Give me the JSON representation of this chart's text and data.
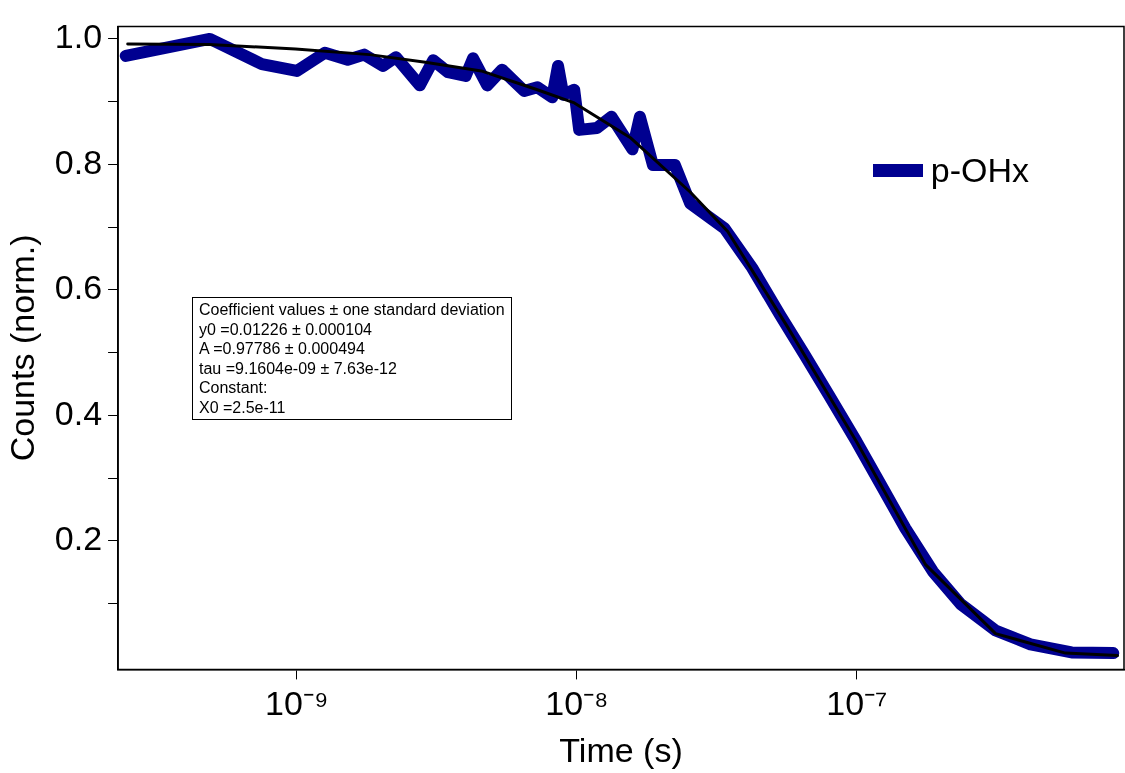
{
  "chart_data": {
    "type": "line",
    "xlabel": "Time (s)",
    "ylabel": "Counts (norm.)",
    "log": "x",
    "legend": "top right",
    "xlim": [
      2.3e-10,
      9e-07
    ],
    "ylim": [
      -0.005,
      1.02
    ],
    "xticks": [
      {
        "value": 1e-09,
        "label": "10⁻⁹"
      },
      {
        "value": 1e-08,
        "label": "10⁻⁸"
      },
      {
        "value": 1e-07,
        "label": "10⁻⁷"
      }
    ],
    "yticks": [
      {
        "value": 0.1,
        "label": null
      },
      0.2,
      {
        "value": 0.3,
        "label": null
      },
      0.4,
      {
        "value": 0.5,
        "label": null
      },
      0.6,
      {
        "value": 0.7,
        "label": null
      },
      0.8,
      {
        "value": 0.9,
        "label": null
      },
      {
        "value": 1.0,
        "label": "1.0"
      }
    ],
    "series": [
      {
        "name": "p-OHx",
        "color": "#000090",
        "x": [
          2.45e-10,
          4.89e-10,
          7.5e-10,
          1e-09,
          1.26e-09,
          1.52e-09,
          1.74e-09,
          2.03e-09,
          2.26e-09,
          2.75e-09,
          3.07e-09,
          3.47e-09,
          4.01e-09,
          4.26e-09,
          4.79e-09,
          5.41e-09,
          6.49e-09,
          7.23e-09,
          8.17e-09,
          8.57e-09,
          8.95e-09,
          9.79e-09,
          1.02e-08,
          1.18e-08,
          1.33e-08,
          1.58e-08,
          1.68e-08,
          1.87e-08,
          2.24e-08,
          2.54e-08,
          3.37e-08,
          4.23e-08,
          5.32e-08,
          6.5e-08,
          7.93e-08,
          9.98e-08,
          1.22e-07,
          1.49e-07,
          1.87e-07,
          2.35e-07,
          3.13e-07,
          4.17e-07,
          5.85e-07,
          8.24e-07
        ],
        "values": [
          0.973,
          1.0,
          0.96,
          0.949,
          0.978,
          0.967,
          0.975,
          0.957,
          0.971,
          0.926,
          0.966,
          0.947,
          0.941,
          0.969,
          0.926,
          0.951,
          0.917,
          0.923,
          0.907,
          0.957,
          0.911,
          0.919,
          0.855,
          0.858,
          0.876,
          0.824,
          0.876,
          0.799,
          0.799,
          0.738,
          0.698,
          0.635,
          0.56,
          0.497,
          0.433,
          0.358,
          0.289,
          0.22,
          0.151,
          0.099,
          0.057,
          0.035,
          0.022,
          0.021
        ]
      },
      {
        "type": "line",
        "color": "#000000",
        "x": [
          2.49e-10,
          4.87e-10,
          9.9e-10,
          1.82e-09,
          2.88e-09,
          4.56e-09,
          7.23e-09,
          9.8e-09,
          1.56e-08,
          2.54e-08,
          3.46e-08,
          5.62e-08,
          9.98e-08,
          1.76e-07,
          3.13e-07,
          5.56e-07,
          8.53e-07
        ],
        "values": [
          0.992,
          0.991,
          0.984,
          0.975,
          0.963,
          0.949,
          0.919,
          0.898,
          0.842,
          0.756,
          0.693,
          0.543,
          0.358,
          0.162,
          0.052,
          0.021,
          0.017
        ]
      }
    ],
    "annotations": [
      "Coefficient values ± one standard deviation",
      "y0 =0.01226 ± 0.000104",
      "A =0.97786 ± 0.000494",
      "tau =9.1604e-09 ± 7.63e-12",
      "Constant:",
      "X0 =2.5e-11"
    ]
  }
}
